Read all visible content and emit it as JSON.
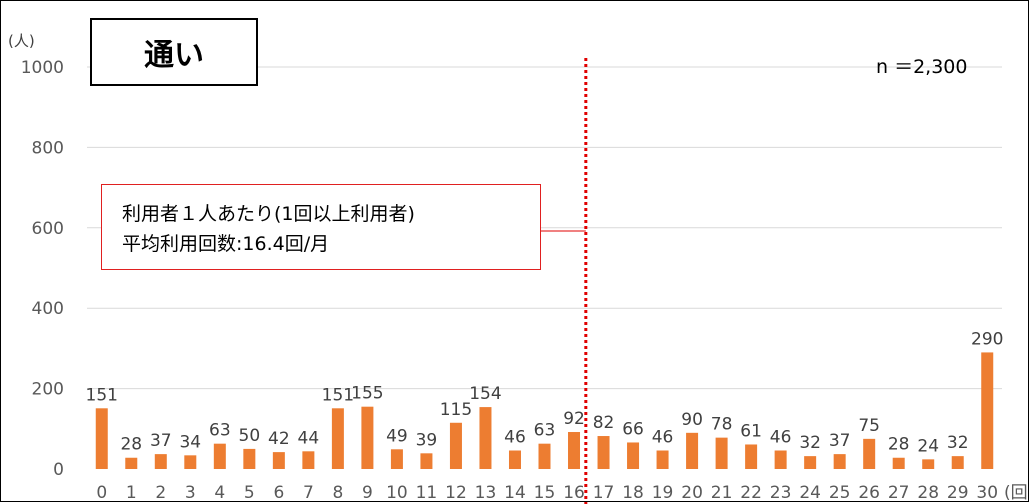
{
  "chart_data": {
    "type": "bar",
    "title": "通い",
    "y_unit": "(人)",
    "x_unit": "(回",
    "n_label": "n ＝2,300",
    "annotation": {
      "line1": "利用者１人あたり(1回以上利用者)",
      "line2": "平均利用回数:16.4回/月"
    },
    "reference_line_x": 16.4,
    "ylim": [
      0,
      1000
    ],
    "yticks": [
      0,
      200,
      400,
      600,
      800,
      1000
    ],
    "grid": true,
    "categories": [
      "0",
      "1",
      "2",
      "3",
      "4",
      "5",
      "6",
      "7",
      "8",
      "9",
      "10",
      "11",
      "12",
      "13",
      "14",
      "15",
      "16",
      "17",
      "18",
      "19",
      "20",
      "21",
      "22",
      "23",
      "24",
      "25",
      "26",
      "27",
      "28",
      "29",
      "30"
    ],
    "values": [
      151,
      28,
      37,
      34,
      63,
      50,
      42,
      44,
      151,
      155,
      49,
      39,
      115,
      154,
      46,
      63,
      92,
      82,
      66,
      46,
      90,
      78,
      61,
      46,
      32,
      37,
      75,
      28,
      24,
      32,
      290
    ],
    "colors": {
      "bar": "#ED7D31",
      "gridline": "#D9D9D9",
      "reference_line": "#E00000"
    }
  }
}
